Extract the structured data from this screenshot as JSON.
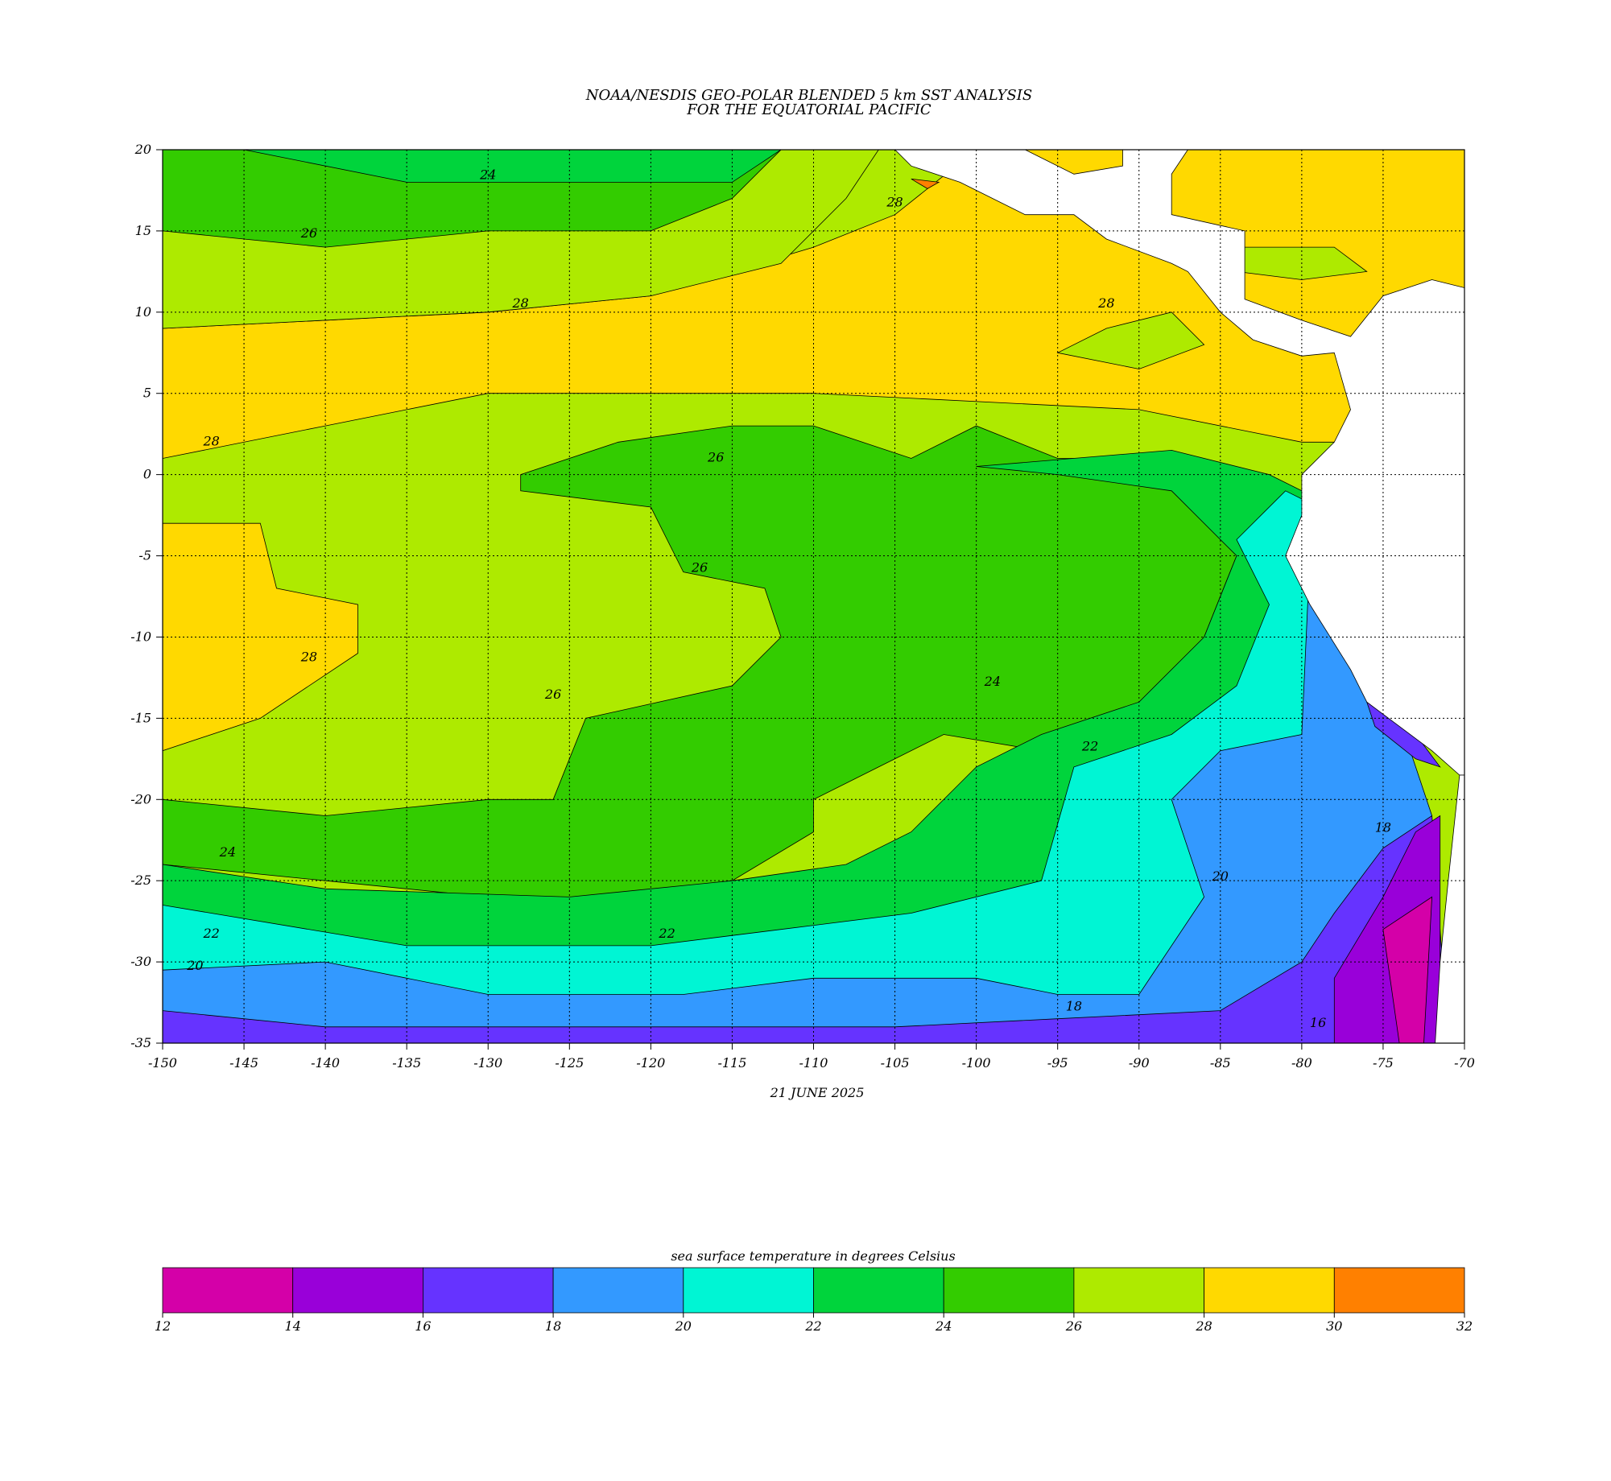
{
  "map": {
    "title": [
      "NOAA/NESDIS GEO-POLAR BLENDED 5 km SST ANALYSIS",
      "FOR THE EQUATORIAL PACIFIC"
    ],
    "date": "21 JUNE 2025",
    "xlim": [
      -150,
      -70
    ],
    "ylim": [
      -35,
      20
    ],
    "xticks": [
      -150,
      -145,
      -140,
      -135,
      -130,
      -125,
      -120,
      -115,
      -110,
      -105,
      -100,
      -95,
      -90,
      -85,
      -80,
      -75,
      -70
    ],
    "yticks": [
      20,
      15,
      10,
      5,
      0,
      -5,
      -10,
      -15,
      -20,
      -25,
      -30,
      -35
    ],
    "grid": true,
    "land_color": "#ffffff",
    "contour_labels": [
      "24",
      "26",
      "28",
      "28",
      "28",
      "26",
      "26",
      "28",
      "26",
      "24",
      "22",
      "20",
      "24",
      "22",
      "20",
      "18",
      "16",
      "18",
      "22",
      "28"
    ],
    "colorbar": {
      "title": "sea surface temperature in degrees Celsius",
      "ticks": [
        12,
        14,
        16,
        18,
        20,
        22,
        24,
        26,
        28,
        30,
        32
      ],
      "colors": [
        "#d400a8",
        "#9900d9",
        "#6633ff",
        "#3399ff",
        "#00f5d4",
        "#00d43c",
        "#33cc00",
        "#aeea00",
        "#ffd900",
        "#ff8000"
      ]
    }
  }
}
